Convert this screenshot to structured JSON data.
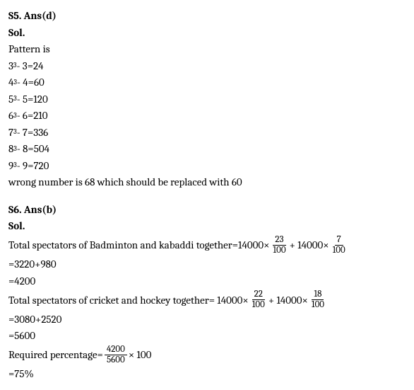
{
  "s5": {
    "header": "S5. Ans(d)",
    "sol_label": "Sol.",
    "intro": "Pattern is",
    "pattern": [
      {
        "base": "3",
        "exp": "3",
        "minus": "3",
        "result": "24"
      },
      {
        "base": "4",
        "exp": "3",
        "minus": "4",
        "result": "60"
      },
      {
        "base": "5",
        "exp": "3",
        "minus": "5",
        "result": "120"
      },
      {
        "base": "6",
        "exp": "3",
        "minus": "6",
        "result": "210"
      },
      {
        "base": "7",
        "exp": "3",
        "minus": "7",
        "result": "336"
      },
      {
        "base": "8",
        "exp": "3",
        "minus": "8",
        "result": "504"
      },
      {
        "base": "9",
        "exp": "3",
        "minus": "9",
        "result": "720"
      }
    ],
    "conclusion": " wrong number is 68 which should be replaced with 60"
  },
  "s6": {
    "header": "S6. Ans(b)",
    "sol_label": "Sol.",
    "line1_pre": "Total spectators of Badminton and kabaddi together=14000×",
    "line1_frac1_num": "23",
    "line1_frac1_den": "100",
    "line1_mid": " + 14000×",
    "line1_frac2_num": "7",
    "line1_frac2_den": "100",
    "line2": "=3220+980",
    "line3": "=4200",
    "line4_pre": "Total spectators of cricket and hockey together= 14000×",
    "line4_frac1_num": "22",
    "line4_frac1_den": "100",
    "line4_mid": " + 14000×",
    "line4_frac2_num": "18",
    "line4_frac2_den": "100",
    "line5": "=3080+2520",
    "line6": "=5600",
    "line7_pre": "Required percentage=",
    "line7_frac_num": "4200",
    "line7_frac_den": "5600",
    "line7_post": " × 100",
    "line8": "=75%"
  }
}
